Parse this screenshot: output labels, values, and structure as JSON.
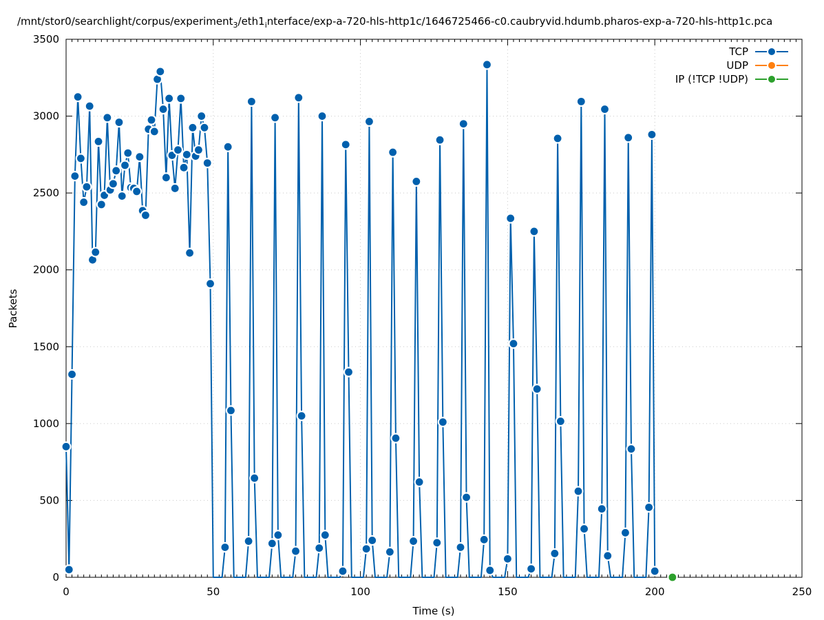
{
  "chart_data": {
    "type": "line",
    "title_parts": [
      {
        "text": "/mnt/stor0/searchlight/corpus/experiment",
        "sub": false
      },
      {
        "text": "3",
        "sub": true
      },
      {
        "text": "/eth1",
        "sub": false
      },
      {
        "text": "i",
        "sub": true
      },
      {
        "text": "nterface/exp-a-720-hls-http1c/1646725466-c0.caubryvid.hdumb.pharos-exp-a-720-hls-http1c.pca",
        "sub": false
      }
    ],
    "xlabel": "Time (s)",
    "ylabel": "Packets",
    "xlim": [
      0,
      250
    ],
    "ylim": [
      0,
      3500
    ],
    "x_ticks": [
      0,
      50,
      100,
      150,
      200,
      250
    ],
    "y_ticks": [
      0,
      500,
      1000,
      1500,
      2000,
      2500,
      3000,
      3500
    ],
    "grid": true,
    "legend_position": "top-right",
    "series": [
      {
        "name": "TCP",
        "color": "#0060ad",
        "points": [
          [
            0,
            850
          ],
          [
            1,
            50
          ],
          [
            2,
            1320
          ],
          [
            3,
            2610
          ],
          [
            4,
            3125
          ],
          [
            5,
            2725
          ],
          [
            6,
            2440
          ],
          [
            7,
            2540
          ],
          [
            8,
            3065
          ],
          [
            9,
            2065
          ],
          [
            10,
            2115
          ],
          [
            11,
            2835
          ],
          [
            12,
            2425
          ],
          [
            13,
            2485
          ],
          [
            14,
            2990
          ],
          [
            15,
            2520
          ],
          [
            16,
            2560
          ],
          [
            17,
            2645
          ],
          [
            18,
            2960
          ],
          [
            19,
            2480
          ],
          [
            20,
            2680
          ],
          [
            21,
            2760
          ],
          [
            22,
            2535
          ],
          [
            23,
            2530
          ],
          [
            24,
            2510
          ],
          [
            25,
            2735
          ],
          [
            26,
            2385
          ],
          [
            27,
            2355
          ],
          [
            28,
            2915
          ],
          [
            29,
            2975
          ],
          [
            30,
            2900
          ],
          [
            31,
            3240
          ],
          [
            32,
            3290
          ],
          [
            33,
            3045
          ],
          [
            34,
            2600
          ],
          [
            35,
            3115
          ],
          [
            36,
            2745
          ],
          [
            37,
            2530
          ],
          [
            38,
            2780
          ],
          [
            39,
            3115
          ],
          [
            40,
            2665
          ],
          [
            41,
            2750
          ],
          [
            42,
            2110
          ],
          [
            43,
            2925
          ],
          [
            44,
            2740
          ],
          [
            45,
            2780
          ],
          [
            46,
            3000
          ],
          [
            47,
            2925
          ],
          [
            48,
            2695
          ],
          [
            49,
            1910
          ],
          [
            50,
            0
          ],
          [
            51,
            0
          ],
          [
            52,
            0
          ],
          [
            53,
            0
          ],
          [
            54,
            195
          ],
          [
            55,
            2800
          ],
          [
            56,
            1085
          ],
          [
            57,
            0
          ],
          [
            61,
            0
          ],
          [
            62,
            235
          ],
          [
            63,
            3095
          ],
          [
            64,
            645
          ],
          [
            65,
            0
          ],
          [
            69,
            0
          ],
          [
            70,
            220
          ],
          [
            71,
            2990
          ],
          [
            72,
            275
          ],
          [
            73,
            0
          ],
          [
            77,
            0
          ],
          [
            78,
            170
          ],
          [
            79,
            3120
          ],
          [
            80,
            1050
          ],
          [
            81,
            0
          ],
          [
            85,
            0
          ],
          [
            86,
            190
          ],
          [
            87,
            3000
          ],
          [
            88,
            275
          ],
          [
            89,
            0
          ],
          [
            93,
            0
          ],
          [
            94,
            40
          ],
          [
            95,
            2815
          ],
          [
            96,
            1335
          ],
          [
            97,
            0
          ],
          [
            101,
            0
          ],
          [
            102,
            185
          ],
          [
            103,
            2965
          ],
          [
            104,
            240
          ],
          [
            105,
            0
          ],
          [
            109,
            0
          ],
          [
            110,
            165
          ],
          [
            111,
            2765
          ],
          [
            112,
            905
          ],
          [
            113,
            0
          ],
          [
            117,
            0
          ],
          [
            118,
            235
          ],
          [
            119,
            2575
          ],
          [
            120,
            620
          ],
          [
            121,
            0
          ],
          [
            125,
            0
          ],
          [
            126,
            225
          ],
          [
            127,
            2845
          ],
          [
            128,
            1010
          ],
          [
            129,
            0
          ],
          [
            133,
            0
          ],
          [
            134,
            195
          ],
          [
            135,
            2950
          ],
          [
            136,
            520
          ],
          [
            137,
            0
          ],
          [
            141,
            0
          ],
          [
            142,
            245
          ],
          [
            143,
            3335
          ],
          [
            144,
            45
          ],
          [
            145,
            0
          ],
          [
            149,
            0
          ],
          [
            150,
            120
          ],
          [
            151,
            2335
          ],
          [
            152,
            1520
          ],
          [
            153,
            0
          ],
          [
            157,
            0
          ],
          [
            158,
            55
          ],
          [
            159,
            2250
          ],
          [
            160,
            1225
          ],
          [
            161,
            0
          ],
          [
            165,
            0
          ],
          [
            166,
            155
          ],
          [
            167,
            2855
          ],
          [
            168,
            1015
          ],
          [
            169,
            0
          ],
          [
            173,
            0
          ],
          [
            174,
            560
          ],
          [
            175,
            3095
          ],
          [
            176,
            315
          ],
          [
            177,
            0
          ],
          [
            181,
            0
          ],
          [
            182,
            445
          ],
          [
            183,
            3045
          ],
          [
            184,
            140
          ],
          [
            185,
            0
          ],
          [
            189,
            0
          ],
          [
            190,
            290
          ],
          [
            191,
            2860
          ],
          [
            192,
            835
          ],
          [
            193,
            0
          ],
          [
            197,
            0
          ],
          [
            198,
            455
          ],
          [
            199,
            2880
          ],
          [
            200,
            40
          ]
        ]
      },
      {
        "name": "UDP",
        "color": "#ff7f0e",
        "points": []
      },
      {
        "name": "IP (!TCP  !UDP)",
        "color": "#2ca02c",
        "points": [
          [
            206,
            0
          ]
        ]
      }
    ]
  }
}
